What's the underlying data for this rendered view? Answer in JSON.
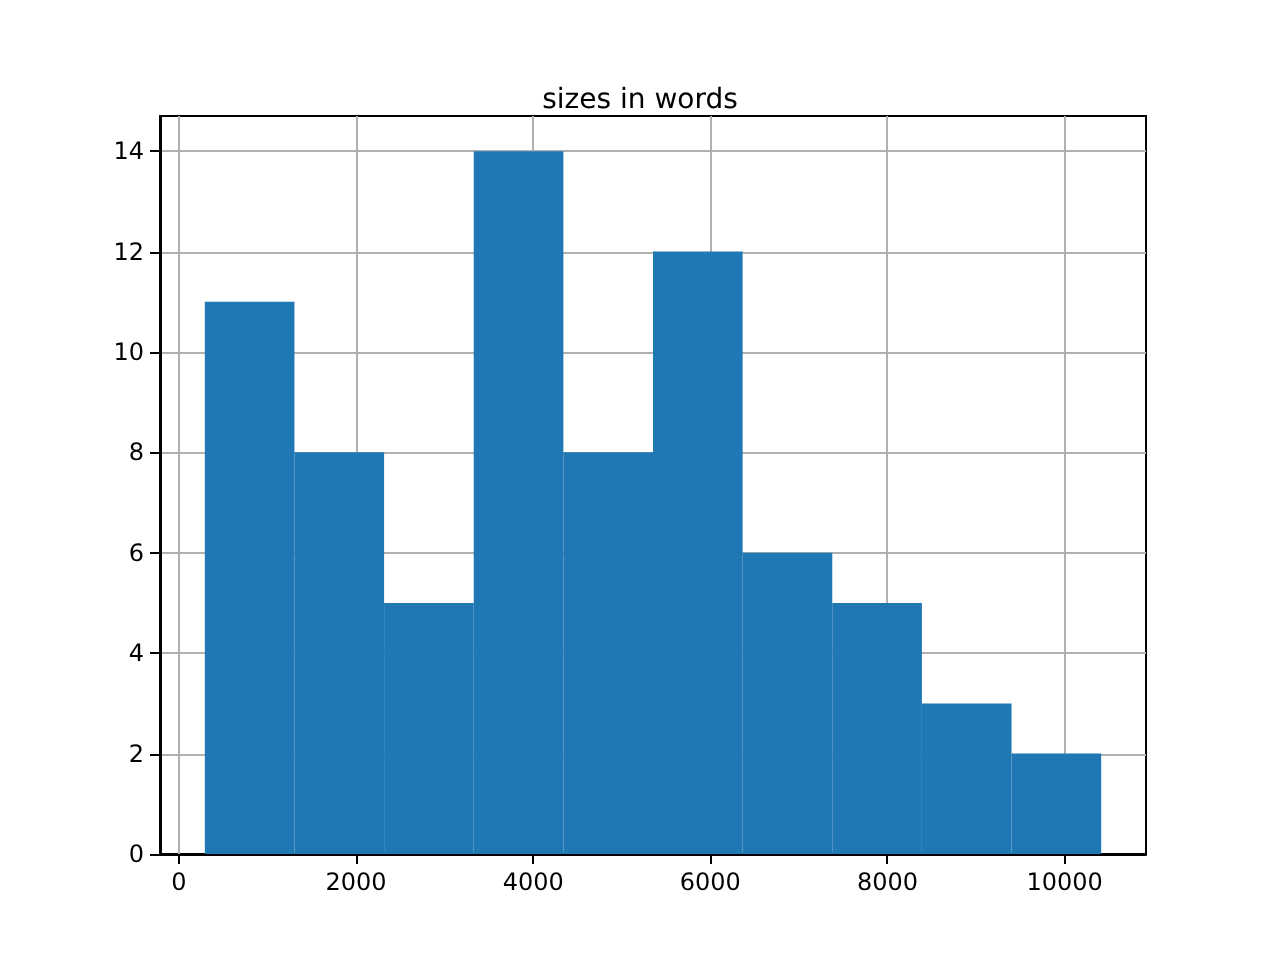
{
  "chart_data": {
    "type": "histogram",
    "title": "sizes in words",
    "bins": [
      293,
      1305,
      2317,
      3329,
      4341,
      5353,
      6365,
      7377,
      8389,
      9401,
      10413
    ],
    "values": [
      11,
      8,
      5,
      14,
      8,
      12,
      6,
      5,
      3,
      2
    ],
    "color": "#1f77b4",
    "xlim": [
      -213,
      10919
    ],
    "xticks": [
      0,
      2000,
      4000,
      6000,
      8000,
      10000
    ],
    "ylim": [
      0,
      14.7
    ],
    "yticks": [
      0,
      2,
      4,
      6,
      8,
      10,
      12,
      14
    ],
    "grid": true
  }
}
